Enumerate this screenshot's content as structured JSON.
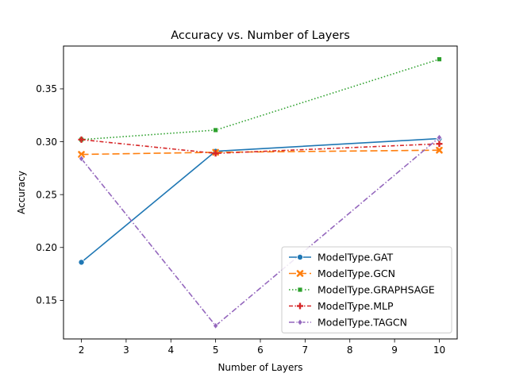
{
  "chart_data": {
    "type": "line",
    "title": "Accuracy vs. Number of Layers",
    "xlabel": "Number of Layers",
    "ylabel": "Accuracy",
    "x": [
      2,
      5,
      10
    ],
    "xlim": [
      1.6,
      10.4
    ],
    "ylim": [
      0.1135,
      0.3905
    ],
    "xticks": [
      2,
      3,
      4,
      5,
      6,
      7,
      8,
      9,
      10
    ],
    "yticks": [
      0.15,
      0.2,
      0.25,
      0.3,
      0.35
    ],
    "ytick_labels": [
      "0.15",
      "0.20",
      "0.25",
      "0.30",
      "0.35"
    ],
    "grid": false,
    "legend_position": "lower-right",
    "series": [
      {
        "name": "ModelType.GAT",
        "values": [
          0.186,
          0.291,
          0.303
        ],
        "color": "#1f77b4",
        "dash": "",
        "marker": "circle"
      },
      {
        "name": "ModelType.GCN",
        "values": [
          0.288,
          0.29,
          0.292
        ],
        "color": "#ff7f0e",
        "dash": "9,4",
        "marker": "x"
      },
      {
        "name": "ModelType.GRAPHSAGE",
        "values": [
          0.302,
          0.311,
          0.378
        ],
        "color": "#2ca02c",
        "dash": "1.5,2.5",
        "marker": "square"
      },
      {
        "name": "ModelType.MLP",
        "values": [
          0.302,
          0.289,
          0.298
        ],
        "color": "#d62728",
        "dash": "5,2.5,1.5,2.5",
        "marker": "plus"
      },
      {
        "name": "ModelType.TAGCN",
        "values": [
          0.284,
          0.126,
          0.304
        ],
        "color": "#9467bd",
        "dash": "7,2.5,1.5,2.5",
        "marker": "diamond"
      }
    ]
  }
}
